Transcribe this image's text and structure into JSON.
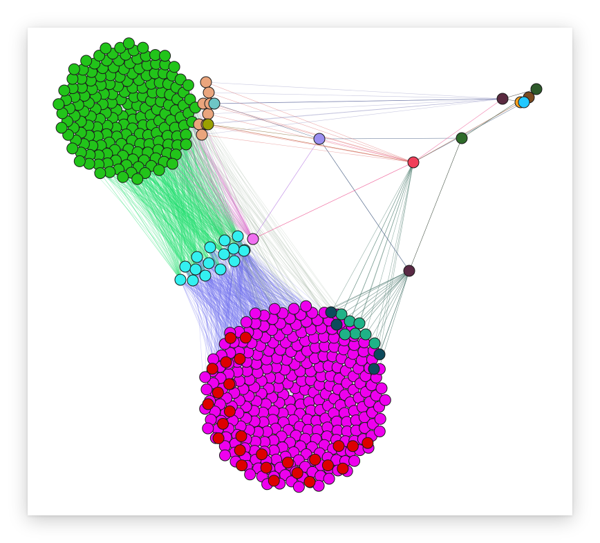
{
  "graph": {
    "background": "#ffffff",
    "node_stroke": "#1a1a1a",
    "node_size": 16,
    "clusters": [
      {
        "name": "green-cluster",
        "color": "#22c41a",
        "count": 183,
        "shape": "disc"
      },
      {
        "name": "magenta-cluster",
        "color": "#ee00ee",
        "count": 300,
        "shape": "disc"
      },
      {
        "name": "red-cluster",
        "color": "#dd0000",
        "count": 26,
        "shape": "band"
      },
      {
        "name": "cyan-cluster",
        "color": "#33f0f0",
        "count": 16,
        "shape": "ring"
      },
      {
        "name": "teal-cluster",
        "color": "#1fb287",
        "count": 7,
        "shape": "arc"
      },
      {
        "name": "dark-teal-cluster",
        "color": "#0d4a5c",
        "count": 4,
        "shape": "arc"
      },
      {
        "name": "peach-cluster",
        "color": "#eaa57d",
        "count": 8,
        "shape": "arc"
      }
    ],
    "hub_nodes": [
      {
        "name": "hub-lavender",
        "color": "#9b8ff0"
      },
      {
        "name": "hub-crimson",
        "color": "#f0405a"
      },
      {
        "name": "hub-forest-green",
        "color": "#2f6b2a"
      },
      {
        "name": "hub-plum",
        "color": "#5a2a45"
      },
      {
        "name": "hub-pink",
        "color": "#f070f0"
      },
      {
        "name": "hub-light-teal",
        "color": "#6ec6c6"
      },
      {
        "name": "hub-olive",
        "color": "#9aa000"
      },
      {
        "name": "corner-dark-green",
        "color": "#2e5a2a"
      },
      {
        "name": "corner-brown",
        "color": "#7a4a20"
      },
      {
        "name": "corner-orange",
        "color": "#f5a020"
      },
      {
        "name": "corner-sky",
        "color": "#22c8ff"
      },
      {
        "name": "corner-plum",
        "color": "#5a2a40"
      }
    ],
    "edge_colors": {
      "green_to_cyan": "#22e070",
      "magenta_to_cyan": "#6a6af0",
      "magenta_to_red": "#d0204a",
      "green_to_magenta": "#88a088",
      "hub_links": "#5a7090",
      "pink_links": "#f06aa0",
      "purple_links": "#b070e0"
    }
  }
}
